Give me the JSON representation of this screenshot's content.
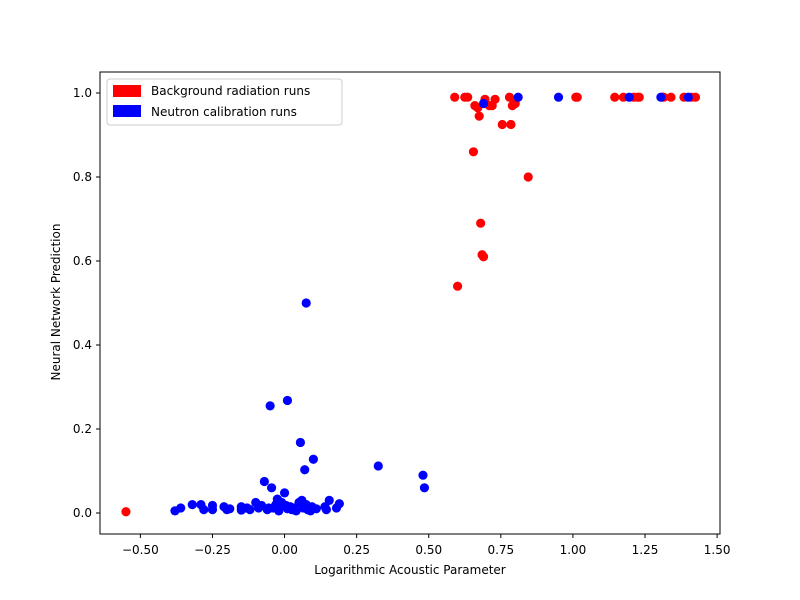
{
  "chart_data": {
    "type": "scatter",
    "title": "",
    "xlabel": "Logarithmic Acoustic Parameter",
    "ylabel": "Neural Network Prediction",
    "xlim": [
      -0.64,
      1.51
    ],
    "ylim": [
      -0.05,
      1.05
    ],
    "xticks": [
      -0.5,
      -0.25,
      0.0,
      0.25,
      0.5,
      0.75,
      1.0,
      1.25,
      1.5
    ],
    "xtick_labels": [
      "−0.50",
      "−0.25",
      "0.00",
      "0.25",
      "0.50",
      "0.75",
      "1.00",
      "1.25",
      "1.50"
    ],
    "yticks": [
      0.0,
      0.2,
      0.4,
      0.6,
      0.8,
      1.0
    ],
    "ytick_labels": [
      "0.0",
      "0.2",
      "0.4",
      "0.6",
      "0.8",
      "1.0"
    ],
    "grid": false,
    "legend_position": "upper-left",
    "series": [
      {
        "name": "Background radiation runs",
        "color": "#ff0000",
        "points": [
          [
            -0.55,
            0.003
          ],
          [
            0.6,
            0.54
          ],
          [
            0.59,
            0.99
          ],
          [
            0.625,
            0.99
          ],
          [
            0.635,
            0.99
          ],
          [
            0.655,
            0.86
          ],
          [
            0.66,
            0.97
          ],
          [
            0.67,
            0.965
          ],
          [
            0.675,
            0.945
          ],
          [
            0.68,
            0.69
          ],
          [
            0.685,
            0.615
          ],
          [
            0.69,
            0.61
          ],
          [
            0.695,
            0.985
          ],
          [
            0.71,
            0.97
          ],
          [
            0.72,
            0.97
          ],
          [
            0.73,
            0.985
          ],
          [
            0.755,
            0.925
          ],
          [
            0.78,
            0.99
          ],
          [
            0.785,
            0.925
          ],
          [
            0.79,
            0.97
          ],
          [
            0.8,
            0.975
          ],
          [
            0.845,
            0.8
          ],
          [
            1.01,
            0.99
          ],
          [
            1.015,
            0.99
          ],
          [
            1.145,
            0.99
          ],
          [
            1.175,
            0.99
          ],
          [
            1.21,
            0.99
          ],
          [
            1.225,
            0.99
          ],
          [
            1.23,
            0.99
          ],
          [
            1.31,
            0.99
          ],
          [
            1.315,
            0.99
          ],
          [
            1.34,
            0.99
          ],
          [
            1.385,
            0.99
          ],
          [
            1.41,
            0.99
          ],
          [
            1.425,
            0.99
          ]
        ]
      },
      {
        "name": "Neutron calibration runs",
        "color": "#0000ff",
        "points": [
          [
            -0.38,
            0.005
          ],
          [
            -0.36,
            0.012
          ],
          [
            -0.32,
            0.02
          ],
          [
            -0.29,
            0.02
          ],
          [
            -0.28,
            0.008
          ],
          [
            -0.25,
            0.018
          ],
          [
            -0.25,
            0.008
          ],
          [
            -0.21,
            0.015
          ],
          [
            -0.2,
            0.008
          ],
          [
            -0.19,
            0.01
          ],
          [
            -0.15,
            0.015
          ],
          [
            -0.15,
            0.007
          ],
          [
            -0.13,
            0.012
          ],
          [
            -0.12,
            0.008
          ],
          [
            -0.1,
            0.025
          ],
          [
            -0.09,
            0.012
          ],
          [
            -0.08,
            0.018
          ],
          [
            -0.07,
            0.075
          ],
          [
            -0.06,
            0.008
          ],
          [
            -0.055,
            0.012
          ],
          [
            -0.05,
            0.255
          ],
          [
            -0.045,
            0.06
          ],
          [
            -0.04,
            0.012
          ],
          [
            -0.03,
            0.02
          ],
          [
            -0.025,
            0.033
          ],
          [
            -0.02,
            0.005
          ],
          [
            -0.015,
            0.015
          ],
          [
            -0.01,
            0.025
          ],
          [
            0.0,
            0.048
          ],
          [
            0.005,
            0.018
          ],
          [
            0.01,
            0.268
          ],
          [
            0.01,
            0.01
          ],
          [
            0.02,
            0.015
          ],
          [
            0.025,
            0.008
          ],
          [
            0.03,
            0.012
          ],
          [
            0.04,
            0.005
          ],
          [
            0.05,
            0.025
          ],
          [
            0.055,
            0.168
          ],
          [
            0.06,
            0.03
          ],
          [
            0.065,
            0.012
          ],
          [
            0.07,
            0.103
          ],
          [
            0.075,
            0.5
          ],
          [
            0.075,
            0.02
          ],
          [
            0.08,
            0.008
          ],
          [
            0.09,
            0.005
          ],
          [
            0.095,
            0.015
          ],
          [
            0.1,
            0.128
          ],
          [
            0.11,
            0.01
          ],
          [
            0.14,
            0.015
          ],
          [
            0.145,
            0.008
          ],
          [
            0.155,
            0.03
          ],
          [
            0.18,
            0.012
          ],
          [
            0.19,
            0.022
          ],
          [
            0.325,
            0.112
          ],
          [
            0.48,
            0.09
          ],
          [
            0.485,
            0.06
          ],
          [
            0.69,
            0.975
          ],
          [
            0.81,
            0.99
          ],
          [
            0.95,
            0.99
          ],
          [
            1.195,
            0.99
          ],
          [
            1.305,
            0.99
          ],
          [
            1.4,
            0.99
          ]
        ]
      }
    ]
  }
}
